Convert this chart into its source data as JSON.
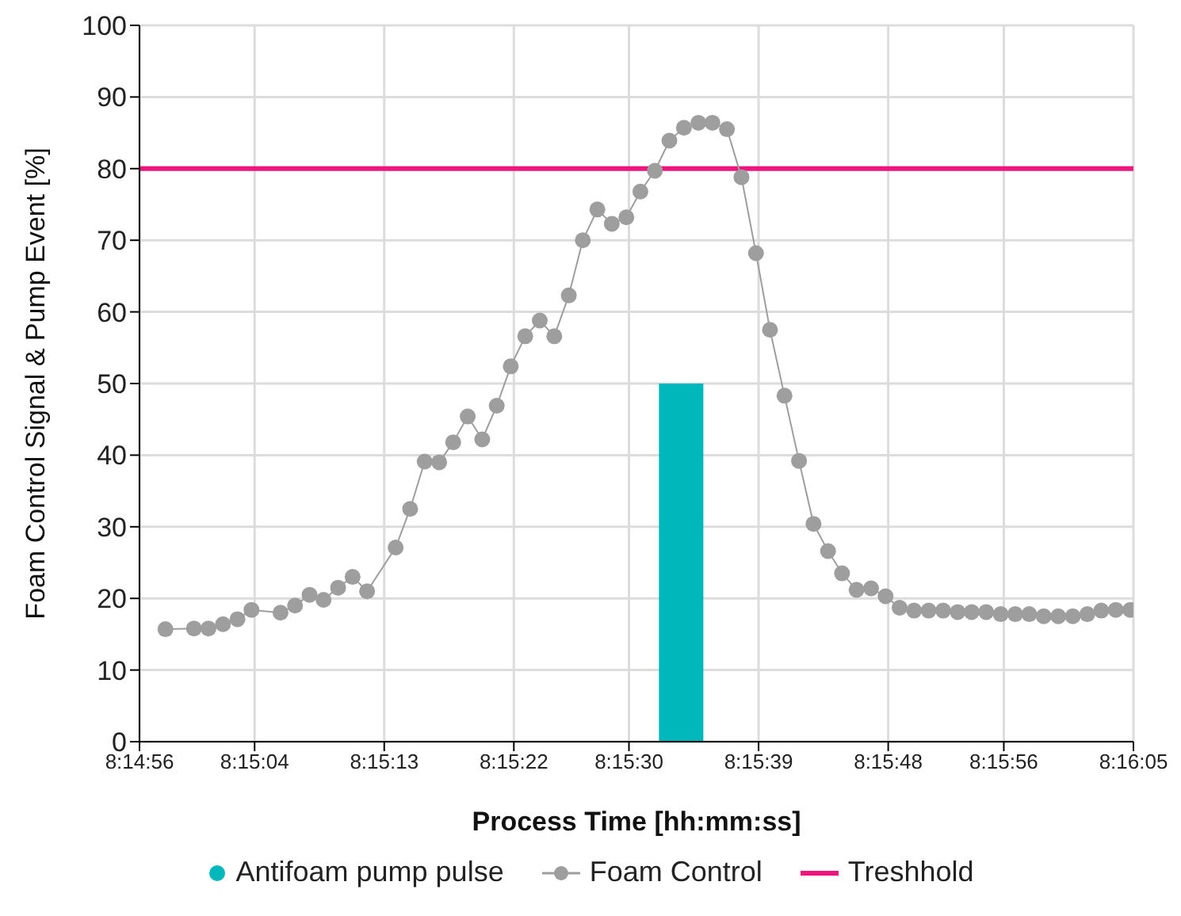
{
  "chart_data": {
    "type": "line",
    "xlabel": "Process Time [hh:mm:ss]",
    "ylabel": "Foam Control Signal & Pump Event [%]",
    "xlim": [
      8.24889,
      8.26806
    ],
    "xticks": [
      {
        "value": 8.24889,
        "label": "8:14:56"
      },
      {
        "value": 8.25111,
        "label": "8:15:04"
      },
      {
        "value": 8.25361,
        "label": "8:15:13"
      },
      {
        "value": 8.25611,
        "label": "8:15:22"
      },
      {
        "value": 8.25833,
        "label": "8:15:30"
      },
      {
        "value": 8.26083,
        "label": "8:15:39"
      },
      {
        "value": 8.26333,
        "label": "8:15:48"
      },
      {
        "value": 8.26556,
        "label": "8:15:56"
      },
      {
        "value": 8.26806,
        "label": "8:16:05"
      }
    ],
    "ylim": [
      0,
      100
    ],
    "yticks": [
      0,
      10,
      20,
      30,
      40,
      50,
      60,
      70,
      80,
      90,
      100
    ],
    "grid": true,
    "legend": "bottom",
    "series": [
      {
        "name": "Antifoam pump pulse",
        "type": "bar",
        "color": "#00b8bc",
        "x": [
          8.25933
        ],
        "values": [
          50
        ]
      },
      {
        "name": "Foam Control",
        "color": "#9e9e9e",
        "marker": "circle",
        "line_style": "solid",
        "x": [
          8.24939,
          8.24994,
          8.25022,
          8.2505,
          8.25078,
          8.25105,
          8.25161,
          8.25189,
          8.25217,
          8.25244,
          8.25272,
          8.253,
          8.25328,
          8.25383,
          8.25411,
          8.25439,
          8.25467,
          8.25494,
          8.25522,
          8.2555,
          8.25578,
          8.25605,
          8.25633,
          8.25661,
          8.25689,
          8.25717,
          8.25744,
          8.25772,
          8.258,
          8.25828,
          8.25855,
          8.25883,
          8.25911,
          8.25939,
          8.25967,
          8.25994,
          8.26022,
          8.2605,
          8.26078,
          8.26105,
          8.26133,
          8.26161,
          8.26189,
          8.26217,
          8.26244,
          8.26272,
          8.263,
          8.26328,
          8.26355,
          8.26383,
          8.26411,
          8.26439,
          8.26467,
          8.26494,
          8.26522,
          8.2655,
          8.26578,
          8.26605,
          8.26633,
          8.26661,
          8.26689,
          8.26717,
          8.26744,
          8.26772,
          8.268
        ],
        "values": [
          15.7,
          15.8,
          15.8,
          16.4,
          17.1,
          18.4,
          18.0,
          19.0,
          20.5,
          19.8,
          21.5,
          23.0,
          21.0,
          27.1,
          32.5,
          39.1,
          39.0,
          41.8,
          45.4,
          42.2,
          46.9,
          52.4,
          56.6,
          58.8,
          56.6,
          62.3,
          70.0,
          74.3,
          72.3,
          73.2,
          76.8,
          79.7,
          83.9,
          85.7,
          86.4,
          86.4,
          85.5,
          78.8,
          68.2,
          57.5,
          48.3,
          39.2,
          30.4,
          26.6,
          23.5,
          21.2,
          21.4,
          20.3,
          18.7,
          18.3,
          18.3,
          18.3,
          18.1,
          18.1,
          18.1,
          17.8,
          17.8,
          17.8,
          17.5,
          17.5,
          17.5,
          17.8,
          18.3,
          18.4,
          18.4
        ]
      }
    ],
    "ref_lines": [
      {
        "axis": "y",
        "value": 80,
        "label": "Treshhold",
        "color": "#f0147c",
        "line_style": "solid"
      }
    ]
  }
}
